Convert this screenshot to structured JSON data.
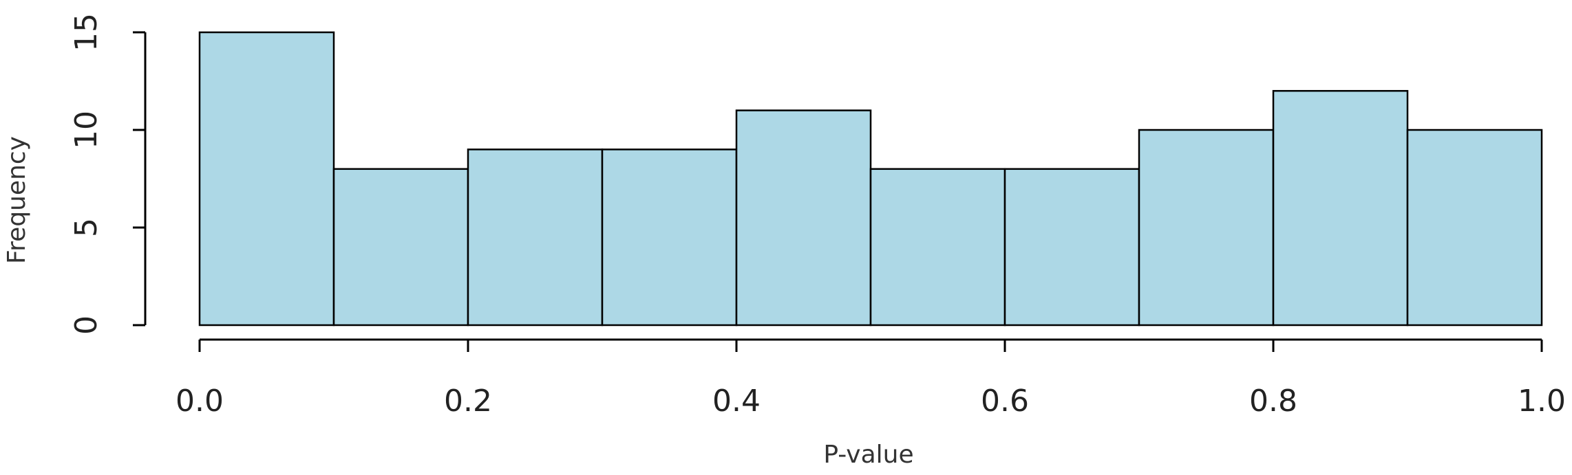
{
  "chart_data": {
    "type": "histogram",
    "x_label": "P-value",
    "y_label": "Frequency",
    "bins": [
      0,
      0.1,
      0.2,
      0.3,
      0.4,
      0.5,
      0.6,
      0.7,
      0.8,
      0.9,
      1.0
    ],
    "values": [
      15,
      8,
      9,
      9,
      11,
      8,
      8,
      10,
      12,
      10
    ],
    "color": "#add8e6",
    "xlim": [
      0,
      1
    ],
    "ylim": [
      0,
      15
    ],
    "xticks": [
      {
        "value": 0,
        "label": "0.0"
      },
      0.2,
      0.4,
      0.6,
      0.8,
      {
        "value": 1,
        "label": "1.0"
      }
    ],
    "yticks": [
      0,
      5,
      10,
      15
    ]
  }
}
